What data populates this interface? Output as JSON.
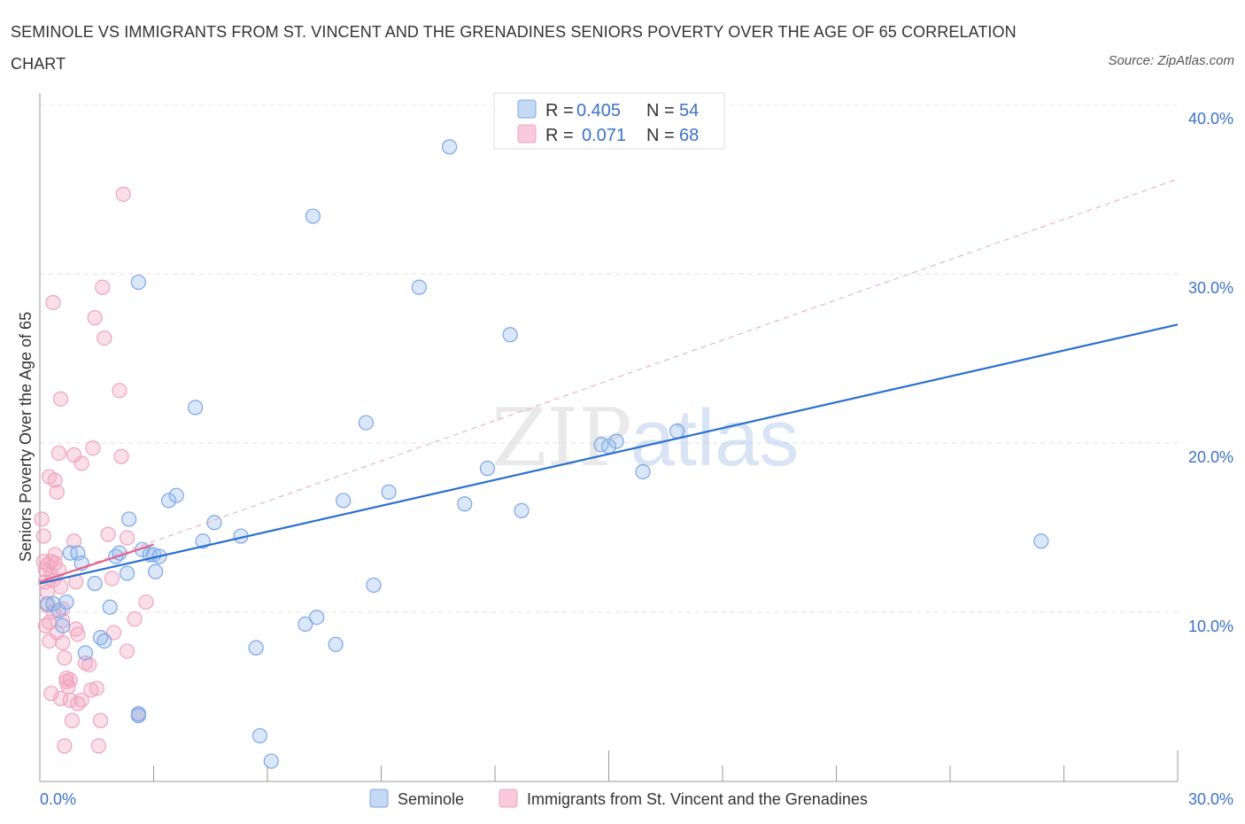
{
  "title": "SEMINOLE VS IMMIGRANTS FROM ST. VINCENT AND THE GRENADINES SENIORS POVERTY OVER THE AGE OF 65 CORRELATION CHART",
  "source": "Source: ZipAtlas.com",
  "watermark": {
    "zip": "ZIP",
    "atlas": "atlas"
  },
  "colors": {
    "blue": "#7aa7e8",
    "blue_line": "#2a6fd0",
    "pink": "#f0a3bd",
    "pink_line": "#e0628f",
    "tick": "#3a72c8"
  },
  "legend_top": {
    "rows": [
      {
        "r_label": "R = ",
        "r_value": "0.405",
        "n_label": "N = ",
        "n_value": "54"
      },
      {
        "r_label": "R = ",
        "r_value": "0.071",
        "n_label": "N = ",
        "n_value": "68"
      }
    ]
  },
  "legend_bottom": {
    "series1": "Seminole",
    "series2": "Immigrants from St. Vincent and the Grenadines"
  },
  "chart_data": {
    "type": "scatter",
    "title": "SEMINOLE VS IMMIGRANTS FROM ST. VINCENT AND THE GRENADINES SENIORS POVERTY OVER THE AGE OF 65 CORRELATION CHART",
    "xlabel": "",
    "ylabel": "Seniors Poverty Over the Age of 65",
    "xlim": [
      0,
      30
    ],
    "ylim": [
      0,
      40
    ],
    "x_tick_labels": [
      "0.0%",
      "30.0%"
    ],
    "y_ticks": [
      10,
      20,
      30,
      40
    ],
    "y_tick_labels": [
      "10.0%",
      "20.0%",
      "30.0%",
      "40.0%"
    ],
    "series": [
      {
        "name": "Seminole",
        "r": 0.405,
        "n": 54,
        "trend": {
          "x1": 0,
          "y1": 11.7,
          "x2": 30,
          "y2": 27.0
        },
        "points": [
          [
            0.2,
            10.5
          ],
          [
            0.35,
            10.5
          ],
          [
            0.5,
            10.1
          ],
          [
            0.6,
            9.2
          ],
          [
            0.7,
            10.6
          ],
          [
            0.8,
            13.5
          ],
          [
            1.0,
            13.5
          ],
          [
            1.1,
            12.9
          ],
          [
            1.2,
            7.6
          ],
          [
            1.45,
            11.7
          ],
          [
            1.6,
            8.5
          ],
          [
            1.7,
            8.3
          ],
          [
            1.85,
            10.3
          ],
          [
            2.0,
            13.3
          ],
          [
            2.1,
            13.5
          ],
          [
            2.3,
            12.3
          ],
          [
            2.35,
            15.5
          ],
          [
            2.6,
            29.5
          ],
          [
            2.7,
            13.7
          ],
          [
            2.9,
            13.4
          ],
          [
            3.0,
            13.4
          ],
          [
            3.05,
            12.4
          ],
          [
            3.15,
            13.3
          ],
          [
            3.4,
            16.6
          ],
          [
            3.6,
            16.9
          ],
          [
            4.1,
            22.1
          ],
          [
            4.3,
            14.2
          ],
          [
            4.6,
            15.3
          ],
          [
            5.3,
            14.5
          ],
          [
            5.7,
            7.9
          ],
          [
            5.8,
            2.7
          ],
          [
            6.1,
            1.2
          ],
          [
            7.0,
            9.3
          ],
          [
            7.2,
            33.4
          ],
          [
            7.3,
            9.7
          ],
          [
            7.8,
            8.1
          ],
          [
            8.0,
            16.6
          ],
          [
            8.6,
            21.2
          ],
          [
            8.8,
            11.6
          ],
          [
            9.2,
            17.1
          ],
          [
            10.0,
            29.2
          ],
          [
            10.8,
            37.5
          ],
          [
            11.2,
            16.4
          ],
          [
            11.8,
            18.5
          ],
          [
            12.4,
            26.4
          ],
          [
            12.7,
            16.0
          ],
          [
            14.8,
            19.9
          ],
          [
            15.0,
            19.8
          ],
          [
            15.2,
            20.1
          ],
          [
            15.9,
            18.3
          ],
          [
            16.8,
            20.7
          ],
          [
            2.6,
            3.9
          ],
          [
            26.4,
            14.2
          ],
          [
            2.6,
            4.0
          ]
        ]
      },
      {
        "name": "Immigrants from St. Vincent and the Grenadines",
        "r": 0.071,
        "n": 68,
        "trend": {
          "x1": 0,
          "y1": 11.8,
          "x2": 3.0,
          "y2": 14.0
        },
        "dashed_projection": {
          "x1": 0,
          "y1": 11.8,
          "x2": 30,
          "y2": 35.6
        },
        "points": [
          [
            0.05,
            15.5
          ],
          [
            0.1,
            14.5
          ],
          [
            0.1,
            13.0
          ],
          [
            0.15,
            12.5
          ],
          [
            0.15,
            11.8
          ],
          [
            0.2,
            11.2
          ],
          [
            0.2,
            10.4
          ],
          [
            0.25,
            9.4
          ],
          [
            0.25,
            8.3
          ],
          [
            0.2,
            12.8
          ],
          [
            0.3,
            13.0
          ],
          [
            0.3,
            12.2
          ],
          [
            0.35,
            11.9
          ],
          [
            0.4,
            12.9
          ],
          [
            0.4,
            17.8
          ],
          [
            0.45,
            17.1
          ],
          [
            0.5,
            19.4
          ],
          [
            0.5,
            12.5
          ],
          [
            0.55,
            11.5
          ],
          [
            0.6,
            10.2
          ],
          [
            0.6,
            9.5
          ],
          [
            0.6,
            8.2
          ],
          [
            0.65,
            7.3
          ],
          [
            0.7,
            6.1
          ],
          [
            0.7,
            5.9
          ],
          [
            0.75,
            5.6
          ],
          [
            0.8,
            4.8
          ],
          [
            0.85,
            3.6
          ],
          [
            0.9,
            14.2
          ],
          [
            0.9,
            19.3
          ],
          [
            0.95,
            11.8
          ],
          [
            0.95,
            9.0
          ],
          [
            1.0,
            8.7
          ],
          [
            1.0,
            4.6
          ],
          [
            1.1,
            4.8
          ],
          [
            1.1,
            18.8
          ],
          [
            1.2,
            7.0
          ],
          [
            1.3,
            6.9
          ],
          [
            1.35,
            5.4
          ],
          [
            1.4,
            19.7
          ],
          [
            1.45,
            27.4
          ],
          [
            1.5,
            5.5
          ],
          [
            1.55,
            2.1
          ],
          [
            1.6,
            3.6
          ],
          [
            1.65,
            29.2
          ],
          [
            1.7,
            26.2
          ],
          [
            1.8,
            14.6
          ],
          [
            1.9,
            12.0
          ],
          [
            1.95,
            8.8
          ],
          [
            2.1,
            23.1
          ],
          [
            2.15,
            19.2
          ],
          [
            2.2,
            34.7
          ],
          [
            2.3,
            14.4
          ],
          [
            2.3,
            7.7
          ],
          [
            2.5,
            9.6
          ],
          [
            2.6,
            3.9
          ],
          [
            2.8,
            10.6
          ],
          [
            0.35,
            28.3
          ],
          [
            0.55,
            22.6
          ],
          [
            0.45,
            8.8
          ],
          [
            0.65,
            2.1
          ],
          [
            0.3,
            5.2
          ],
          [
            0.25,
            18.0
          ],
          [
            0.55,
            4.9
          ],
          [
            0.8,
            6.0
          ],
          [
            0.4,
            13.4
          ],
          [
            0.15,
            9.2
          ],
          [
            0.35,
            10.0
          ]
        ]
      }
    ]
  }
}
